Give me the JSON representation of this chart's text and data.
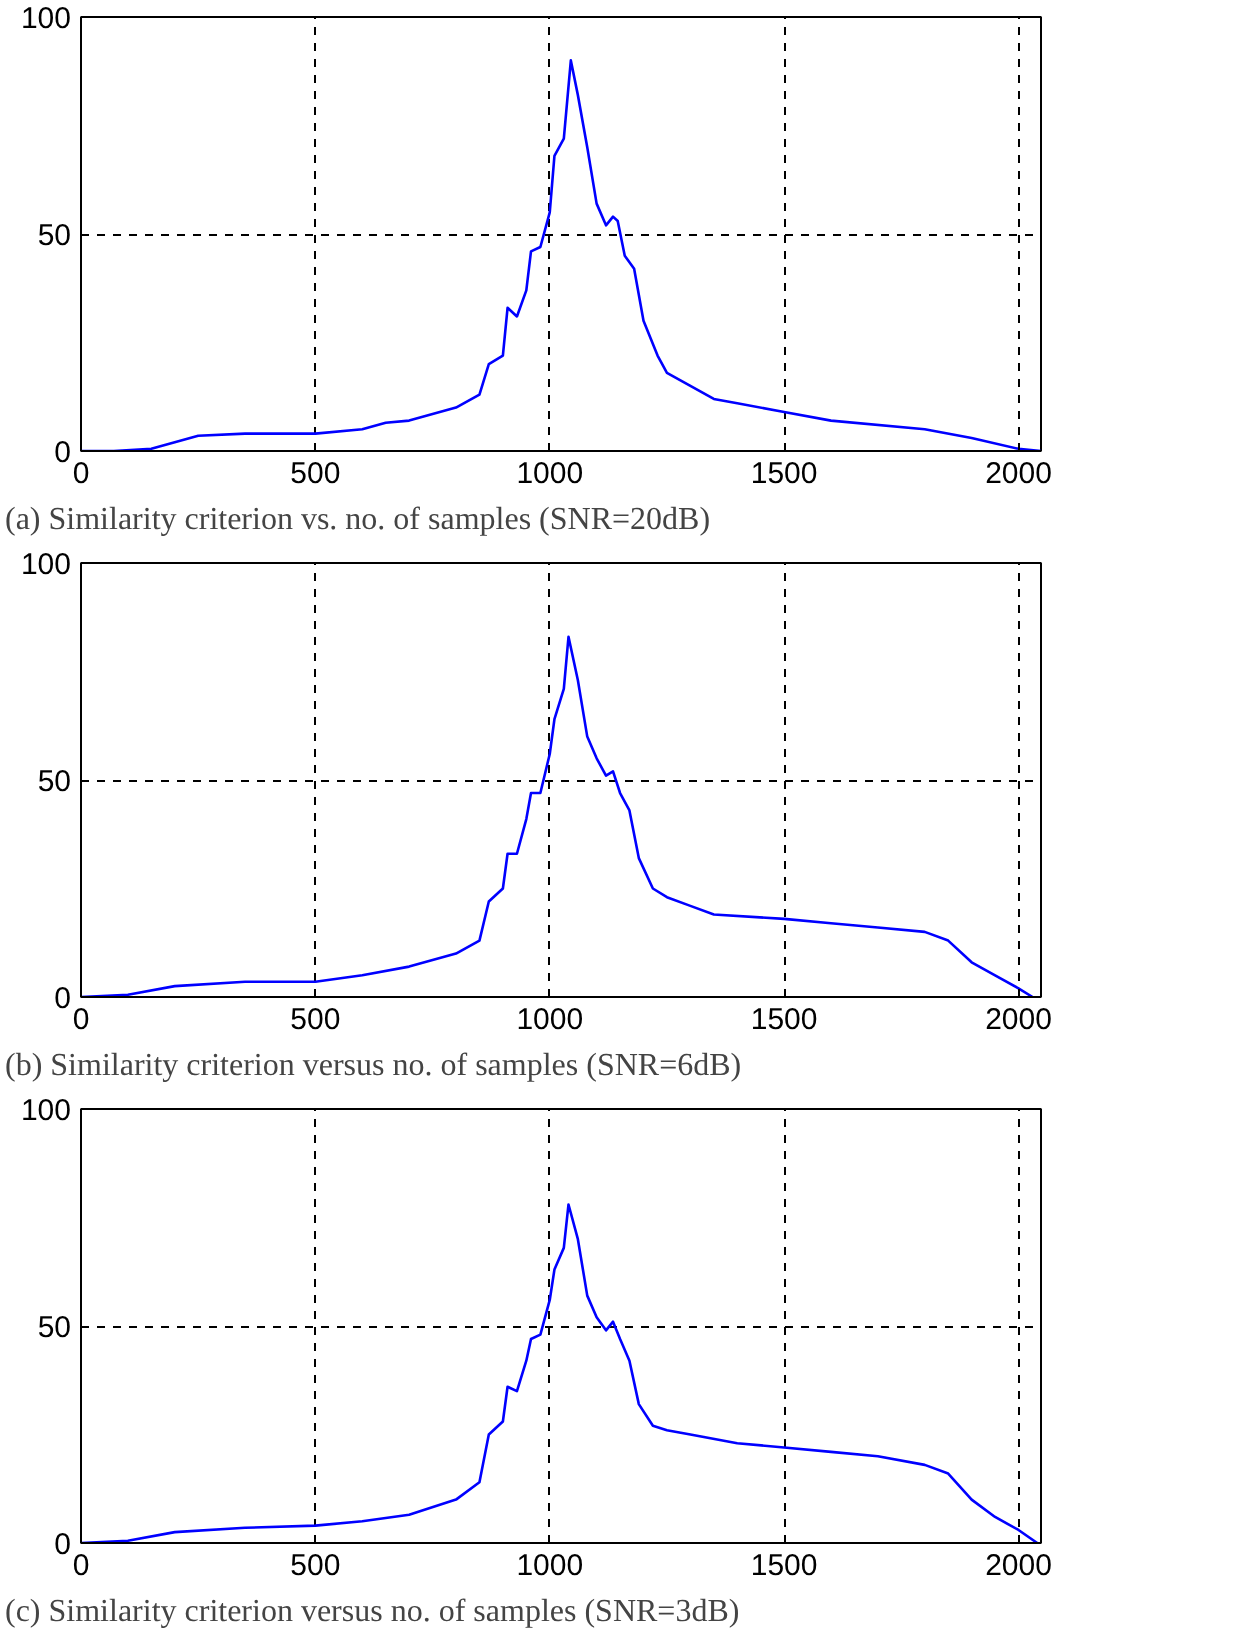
{
  "chart_data": [
    {
      "type": "line",
      "title": "(a) Similarity criterion vs. no. of samples (SNR=20dB)",
      "xlim": [
        0,
        2048
      ],
      "ylim": [
        0,
        100
      ],
      "xticks": [
        0,
        500,
        1000,
        1500,
        2000
      ],
      "yticks": [
        0,
        50,
        100
      ],
      "grid": true,
      "line_style": "solid",
      "series": [
        {
          "color": "#0000ff",
          "x": [
            0,
            70,
            150,
            200,
            250,
            350,
            400,
            500,
            600,
            650,
            700,
            800,
            850,
            870,
            900,
            910,
            930,
            950,
            960,
            980,
            1000,
            1010,
            1030,
            1045,
            1060,
            1080,
            1100,
            1120,
            1135,
            1145,
            1160,
            1180,
            1200,
            1230,
            1250,
            1300,
            1350,
            1400,
            1500,
            1600,
            1800,
            1900,
            2000,
            2048
          ],
          "values": [
            0,
            0,
            0.5,
            2,
            3.5,
            4,
            4,
            4,
            5,
            6.5,
            7,
            10,
            13,
            20,
            22,
            33,
            31,
            37,
            46,
            47,
            55,
            68,
            72,
            90,
            82,
            70,
            57,
            52,
            54,
            53,
            45,
            42,
            30,
            22,
            18,
            15,
            12,
            11,
            9,
            7,
            5,
            3,
            0.5,
            0
          ]
        }
      ]
    },
    {
      "type": "line",
      "title": "(b) Similarity criterion versus no. of samples (SNR=6dB)",
      "xlim": [
        0,
        2048
      ],
      "ylim": [
        0,
        100
      ],
      "xticks": [
        0,
        500,
        1000,
        1500,
        2000
      ],
      "yticks": [
        0,
        50,
        100
      ],
      "grid": true,
      "line_style": "solid",
      "series": [
        {
          "color": "#0000ff",
          "x": [
            0,
            100,
            200,
            350,
            500,
            600,
            700,
            800,
            850,
            870,
            900,
            910,
            930,
            950,
            960,
            980,
            1000,
            1010,
            1030,
            1040,
            1060,
            1080,
            1100,
            1120,
            1135,
            1150,
            1170,
            1190,
            1220,
            1250,
            1300,
            1350,
            1500,
            1600,
            1700,
            1800,
            1850,
            1900,
            1950,
            2000,
            2030
          ],
          "values": [
            0,
            0.5,
            2.5,
            3.5,
            3.5,
            5,
            7,
            10,
            13,
            22,
            25,
            33,
            33,
            41,
            47,
            47,
            56,
            64,
            71,
            83,
            73,
            60,
            55,
            51,
            52,
            47,
            43,
            32,
            25,
            23,
            21,
            19,
            18,
            17,
            16,
            15,
            13,
            8,
            5,
            2,
            0
          ]
        }
      ]
    },
    {
      "type": "line",
      "title": "(c) Similarity criterion versus no. of samples (SNR=3dB)",
      "xlim": [
        0,
        2048
      ],
      "ylim": [
        0,
        100
      ],
      "xticks": [
        0,
        500,
        1000,
        1500,
        2000
      ],
      "yticks": [
        0,
        50,
        100
      ],
      "grid": true,
      "line_style": "solid",
      "series": [
        {
          "color": "#0000ff",
          "x": [
            0,
            100,
            200,
            350,
            500,
            600,
            700,
            800,
            850,
            870,
            900,
            910,
            930,
            950,
            960,
            980,
            1000,
            1010,
            1030,
            1040,
            1060,
            1080,
            1100,
            1120,
            1135,
            1150,
            1170,
            1190,
            1220,
            1250,
            1300,
            1400,
            1500,
            1600,
            1700,
            1800,
            1850,
            1900,
            1950,
            2000,
            2040
          ],
          "values": [
            0,
            0.5,
            2.5,
            3.5,
            4,
            5,
            6.5,
            10,
            14,
            25,
            28,
            36,
            35,
            42,
            47,
            48,
            56,
            63,
            68,
            78,
            70,
            57,
            52,
            49,
            51,
            47,
            42,
            32,
            27,
            26,
            25,
            23,
            22,
            21,
            20,
            18,
            16,
            10,
            6,
            3,
            0
          ]
        }
      ]
    }
  ]
}
